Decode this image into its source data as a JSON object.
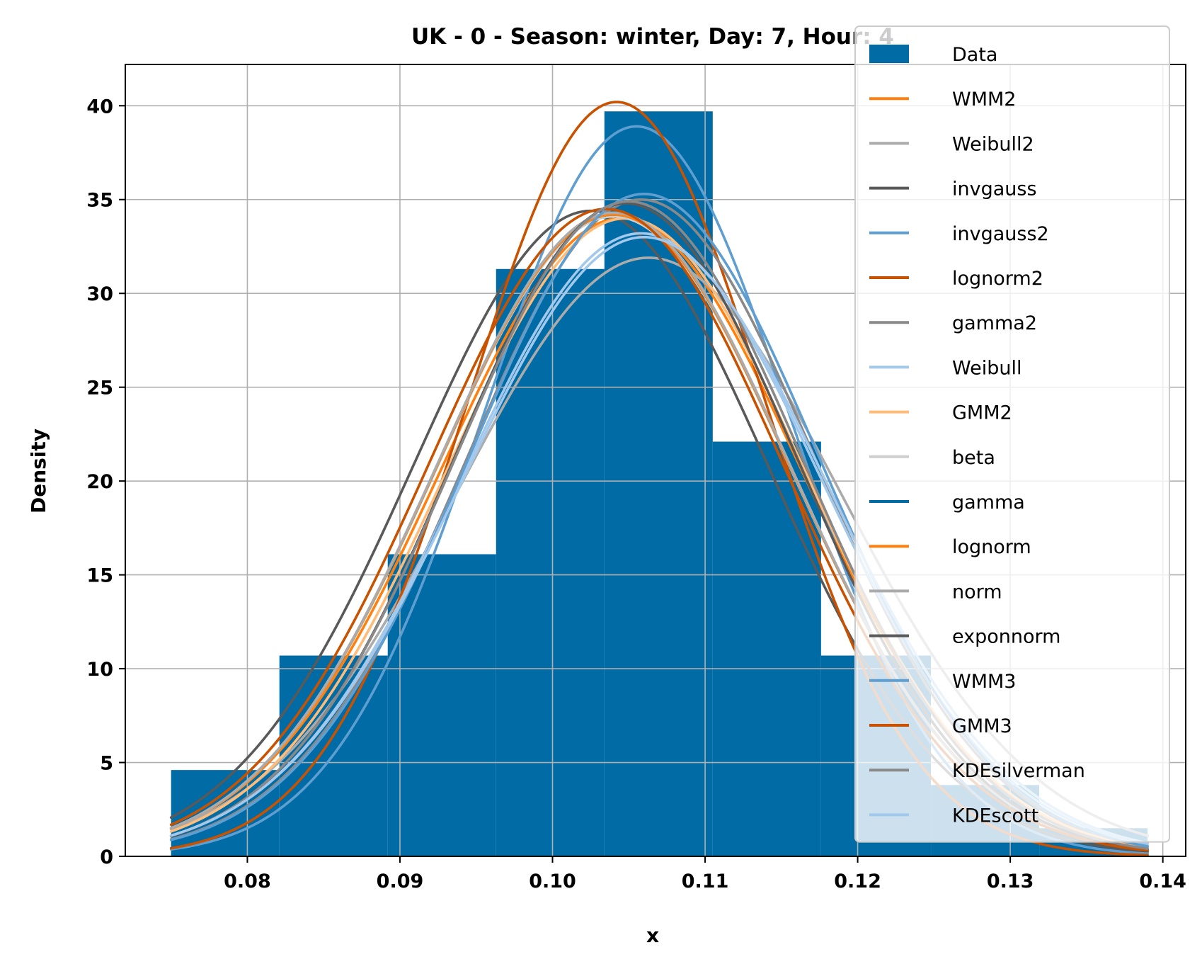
{
  "chart_data": {
    "type": "bar",
    "title": "UK - 0 - Season: winter, Day: 7, Hour: 4",
    "xlabel": "x",
    "ylabel": "Density",
    "xlim": [
      0.072,
      0.1415
    ],
    "ylim": [
      0,
      42.2
    ],
    "xticks": [
      0.08,
      0.09,
      0.1,
      0.11,
      0.12,
      0.13,
      0.14
    ],
    "xtick_labels": [
      "0.08",
      "0.09",
      "0.10",
      "0.11",
      "0.12",
      "0.13",
      "0.14"
    ],
    "yticks": [
      0,
      5,
      10,
      15,
      20,
      25,
      30,
      35,
      40
    ],
    "ytick_labels": [
      "0",
      "5",
      "10",
      "15",
      "20",
      "25",
      "30",
      "35",
      "40"
    ],
    "grid": true,
    "legend_position": "top-right",
    "histogram": {
      "name": "Data",
      "color": "#006BA4",
      "bin_edges": [
        0.075,
        0.0821,
        0.0892,
        0.0963,
        0.1034,
        0.1105,
        0.1176,
        0.1248,
        0.1319,
        0.139
      ],
      "values": [
        4.6,
        10.7,
        16.1,
        31.3,
        39.7,
        22.1,
        10.7,
        3.8,
        1.5
      ]
    },
    "series": [
      {
        "name": "WMM2",
        "color": "#FF800E",
        "mu": 0.1045,
        "sigma": 0.0118,
        "peak": 34.0
      },
      {
        "name": "Weibull2",
        "color": "#ABABAB",
        "mu": 0.1063,
        "sigma": 0.0126,
        "peak": 31.9
      },
      {
        "name": "invgauss",
        "color": "#595959",
        "mu": 0.1025,
        "sigma": 0.0116,
        "peak": 34.4
      },
      {
        "name": "invgauss2",
        "color": "#5F9ED1",
        "mu": 0.1055,
        "sigma": 0.01,
        "peak": 38.9
      },
      {
        "name": "lognorm2",
        "color": "#C85200",
        "mu": 0.1042,
        "sigma": 0.0097,
        "peak": 40.2
      },
      {
        "name": "gamma2",
        "color": "#898989",
        "mu": 0.1058,
        "sigma": 0.0114,
        "peak": 35.0
      },
      {
        "name": "Weibull",
        "color": "#A2C8EC",
        "mu": 0.1058,
        "sigma": 0.0118,
        "peak": 33.2
      },
      {
        "name": "GMM2",
        "color": "#FFBC79",
        "mu": 0.1048,
        "sigma": 0.0117,
        "peak": 34.0
      },
      {
        "name": "beta",
        "color": "#CFCFCF",
        "mu": 0.104,
        "sigma": 0.0116,
        "peak": 34.1
      },
      {
        "name": "gamma",
        "color": "#006BA4",
        "mu": 0.104,
        "sigma": 0.0116,
        "peak": 34.2
      },
      {
        "name": "lognorm",
        "color": "#FF800E",
        "mu": 0.104,
        "sigma": 0.0116,
        "peak": 34.2
      },
      {
        "name": "norm",
        "color": "#ABABAB",
        "mu": 0.104,
        "sigma": 0.0116,
        "peak": 34.3
      },
      {
        "name": "exponnorm",
        "color": "#595959",
        "mu": 0.1048,
        "sigma": 0.0113,
        "peak": 34.8
      },
      {
        "name": "WMM3",
        "color": "#5F9ED1",
        "mu": 0.106,
        "sigma": 0.0114,
        "peak": 35.3
      },
      {
        "name": "GMM3",
        "color": "#C85200",
        "mu": 0.1035,
        "sigma": 0.0116,
        "peak": 34.5
      },
      {
        "name": "KDEsilverman",
        "color": "#898989",
        "mu": 0.105,
        "sigma": 0.0114,
        "peak": 34.9
      },
      {
        "name": "KDEscott",
        "color": "#A2C8EC",
        "mu": 0.106,
        "sigma": 0.0119,
        "peak": 33.0
      }
    ]
  }
}
